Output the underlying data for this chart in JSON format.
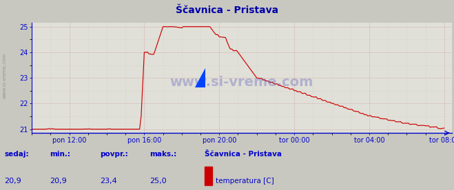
{
  "title": "Ščavnica - Pristava",
  "bg_color": "#c8c8c0",
  "plot_bg_color": "#e0e0d8",
  "line_color": "#cc0000",
  "axis_color": "#0000cc",
  "grid_color_major": "#cc8888",
  "grid_color_minor": "#c0c0b8",
  "ylim": [
    21,
    25
  ],
  "yticks": [
    21,
    22,
    23,
    24,
    25
  ],
  "xtick_labels": [
    "pon 12:00",
    "pon 16:00",
    "pon 20:00",
    "tor 00:00",
    "tor 04:00",
    "tor 08:00"
  ],
  "xtick_positions": [
    2,
    6,
    10,
    14,
    18,
    22
  ],
  "xlim": [
    0,
    22.4
  ],
  "watermark": "www.si-vreme.com",
  "sidebar_text": "www.si-vreme.com",
  "footer_labels": [
    "sedaj:",
    "min.:",
    "povpr.:",
    "maks.:"
  ],
  "footer_values": [
    "20,9",
    "20,9",
    "23,4",
    "25,0"
  ],
  "footer_station": "Ščavnica - Pristava",
  "footer_series": "temperatura [C]",
  "legend_color": "#cc0000",
  "title_color": "#0000aa"
}
